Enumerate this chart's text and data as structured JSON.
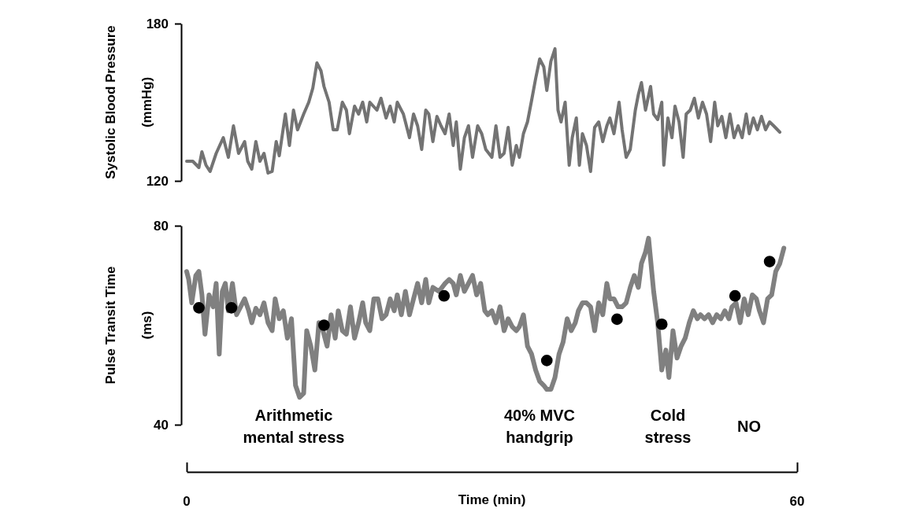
{
  "chart_data": [
    {
      "type": "line",
      "ylabel": "Systolic Blood Pressure\n(mmHg)",
      "xlim": [
        0,
        60
      ],
      "ylim": [
        120,
        180
      ],
      "yticks": [
        120,
        180
      ],
      "tick_labels": "y",
      "grid": false,
      "series": [
        {
          "color": "#737373",
          "x": [
            0,
            0.6,
            1.2,
            1.5,
            1.9,
            2.3,
            2.9,
            3.6,
            4.1,
            4.6,
            5.1,
            5.7,
            6.0,
            6.4,
            6.8,
            7.2,
            7.6,
            8.0,
            8.4,
            8.8,
            9.1,
            9.7,
            10.1,
            10.5,
            10.9,
            11.5,
            12.0,
            12.4,
            12.8,
            13.2,
            13.5,
            14.0,
            14.4,
            14.8,
            15.3,
            15.7,
            16.0,
            16.5,
            16.9,
            17.3,
            17.7,
            18.0,
            18.7,
            19.1,
            19.6,
            20.0,
            20.4,
            20.7,
            21.3,
            21.9,
            22.3,
            22.7,
            23.1,
            23.5,
            23.8,
            24.2,
            24.6,
            25.0,
            25.4,
            25.8,
            26.2,
            26.5,
            26.9,
            27.3,
            27.7,
            28.1,
            28.6,
            29.0,
            29.4,
            30.0,
            30.4,
            30.8,
            31.2,
            31.6,
            32.0,
            32.4,
            32.7,
            33.1,
            33.5,
            33.9,
            34.3,
            34.7,
            35.1,
            35.4,
            35.8,
            36.2,
            36.5,
            36.8,
            37.2,
            37.6,
            37.9,
            38.3,
            38.6,
            38.9,
            39.3,
            39.7,
            40.1,
            40.5,
            40.9,
            41.3,
            41.6,
            42.0,
            42.5,
            42.8,
            43.2,
            43.6,
            44.1,
            44.4,
            44.7,
            45.1,
            45.6,
            45.9,
            46.3,
            46.7,
            46.9,
            47.3,
            47.7,
            48.0,
            48.4,
            48.8,
            49.1,
            49.5,
            49.9,
            50.3,
            50.7,
            51.1,
            51.5,
            51.9,
            52.2,
            52.6,
            53.0,
            53.4,
            53.8,
            54.2,
            54.6,
            55.0,
            55.3,
            55.7,
            56.1,
            56.5,
            56.9,
            57.3,
            57.7,
            58.3
          ],
          "values": [
            127.5,
            127.5,
            125.1,
            131.1,
            126,
            123.6,
            130.5,
            136.5,
            129,
            141,
            130.5,
            135,
            127.5,
            124.5,
            135,
            127.5,
            130.5,
            123,
            123.6,
            135,
            129.6,
            145.5,
            133.5,
            147,
            139.5,
            145.5,
            150,
            155.4,
            165,
            162,
            156,
            150,
            139.5,
            139.5,
            150,
            147,
            138,
            148.5,
            145.5,
            150,
            142.5,
            150,
            147,
            151.5,
            144,
            148.5,
            142.5,
            150,
            145.5,
            136.5,
            145.5,
            141,
            132,
            147,
            145.5,
            135,
            144.6,
            141,
            138,
            145.5,
            133.5,
            142.5,
            124.5,
            136.5,
            141,
            129,
            141,
            138,
            132,
            129,
            141,
            129,
            130.5,
            140.4,
            126,
            133.5,
            129,
            138,
            142.5,
            150.6,
            159,
            166.5,
            163.5,
            154.5,
            165.6,
            170.4,
            147,
            142.5,
            150,
            126,
            136.5,
            144,
            126,
            138,
            133.5,
            123.6,
            140.4,
            142.5,
            135,
            141,
            144,
            138,
            150,
            139.5,
            129,
            132,
            147,
            153,
            157.5,
            147,
            156,
            145.5,
            143.4,
            150,
            126,
            144,
            136.5,
            148.5,
            142.5,
            129,
            145.5,
            147,
            151.5,
            144,
            150,
            145.5,
            135,
            150,
            141,
            144.6,
            136.5,
            145.5,
            136.5,
            141,
            136.5,
            145.5,
            138,
            144,
            139.5,
            144.6,
            139.5,
            142.5,
            141,
            138.6
          ]
        }
      ]
    },
    {
      "type": "line",
      "ylabel": "Pulse Transit Time\n(ms)",
      "xlabel": "Time (min)",
      "xlim": [
        0,
        60
      ],
      "ylim": [
        40,
        80
      ],
      "yticks": [
        40,
        80
      ],
      "xticks": [
        0,
        60
      ],
      "grid": false,
      "annotations": [
        "Arithmetic\nmental stress",
        "40% MVC\nhandgrip",
        "Cold\nstress",
        "NO"
      ],
      "series": [
        {
          "color": "#808080",
          "x": [
            0,
            0.2,
            0.5,
            0.9,
            1.2,
            1.5,
            1.8,
            2.2,
            2.6,
            2.9,
            3.2,
            3.5,
            3.8,
            4.1,
            4.5,
            4.9,
            5.3,
            5.7,
            6.1,
            6.4,
            6.8,
            7.2,
            7.6,
            8.0,
            8.4,
            8.7,
            9.1,
            9.5,
            9.9,
            10.3,
            10.7,
            11.1,
            11.5,
            11.8,
            12.2,
            12.6,
            13.0,
            13.4,
            13.8,
            14.2,
            14.6,
            14.9,
            15.3,
            15.7,
            16.1,
            16.5,
            16.9,
            17.3,
            17.6,
            18.0,
            18.4,
            18.8,
            19.2,
            19.6,
            20.0,
            20.4,
            20.7,
            21.1,
            21.5,
            21.9,
            22.3,
            22.7,
            23.1,
            23.5,
            23.8,
            24.2,
            24.8,
            25.4,
            25.8,
            26.2,
            26.5,
            26.9,
            27.3,
            27.7,
            28.1,
            28.5,
            28.9,
            29.3,
            29.6,
            30.0,
            30.4,
            30.8,
            31.2,
            31.6,
            32.0,
            32.4,
            32.7,
            33.1,
            33.5,
            33.9,
            34.3,
            34.7,
            35.1,
            35.4,
            35.8,
            36.2,
            36.6,
            37.0,
            37.4,
            37.8,
            38.2,
            38.5,
            38.9,
            39.3,
            39.7,
            40.1,
            40.5,
            40.9,
            41.3,
            41.6,
            42.0,
            42.4,
            42.8,
            43.2,
            43.6,
            44.0,
            44.4,
            44.7,
            45.1,
            45.4,
            45.9,
            46.3,
            46.7,
            47.1,
            47.4,
            47.8,
            48.2,
            48.6,
            49.0,
            49.4,
            49.8,
            50.2,
            50.5,
            50.9,
            51.3,
            51.7,
            52.1,
            52.5,
            52.9,
            53.3,
            53.6,
            54.0,
            54.4,
            54.8,
            55.2,
            55.6,
            56.0,
            56.3,
            56.7,
            57.1,
            57.5,
            57.9,
            58.3,
            58.7
          ],
          "values": [
            70.8,
            69.2,
            64.5,
            70.0,
            70.8,
            66.1,
            58.2,
            66.1,
            63.7,
            68.4,
            54.2,
            66.8,
            68.4,
            62.9,
            68.4,
            62.1,
            63.7,
            65.3,
            62.9,
            60.5,
            63.4,
            62.1,
            64.5,
            60.5,
            58.9,
            65.3,
            61.3,
            62.9,
            57.4,
            61.3,
            47.9,
            45.5,
            46.3,
            58.9,
            55.8,
            51.0,
            60.5,
            58.9,
            55.8,
            62.1,
            57.4,
            62.9,
            58.9,
            58.2,
            63.7,
            57.4,
            60.5,
            64.5,
            60.5,
            58.9,
            65.3,
            65.3,
            61.3,
            62.1,
            65.3,
            62.9,
            66.1,
            62.1,
            66.8,
            62.1,
            65.3,
            68.4,
            64.5,
            69.2,
            64.5,
            67.6,
            66.8,
            68.4,
            69.2,
            68.4,
            66.1,
            70.0,
            66.8,
            68.4,
            70.0,
            66.1,
            68.4,
            62.9,
            62.1,
            62.9,
            60.5,
            63.7,
            58.9,
            61.3,
            59.7,
            58.9,
            59.7,
            62.1,
            55.8,
            54.2,
            51.0,
            48.7,
            47.9,
            47.1,
            47.1,
            49.5,
            54.2,
            56.6,
            61.3,
            58.9,
            60.5,
            62.9,
            64.5,
            64.5,
            63.7,
            58.9,
            64.5,
            62.1,
            68.4,
            65.3,
            65.3,
            63.7,
            63.7,
            64.5,
            67.6,
            70.0,
            67.6,
            72.4,
            74.7,
            77.5,
            66.8,
            60.5,
            51.0,
            55.0,
            49.5,
            58.9,
            53.4,
            55.8,
            57.4,
            60.5,
            62.9,
            61.3,
            62.1,
            61.3,
            62.1,
            60.5,
            62.1,
            61.3,
            62.9,
            61.3,
            63.7,
            64.5,
            60.5,
            65.3,
            62.1,
            66.1,
            65.3,
            62.9,
            60.5,
            65.3,
            66.1,
            70.8,
            72.4,
            75.5
          ]
        },
        {
          "type": "scatter",
          "marker": "circle",
          "color": "#000000",
          "x": [
            1.2,
            4.4,
            13.5,
            25.3,
            35.4,
            42.3,
            46.7,
            53.9,
            57.3
          ],
          "values": [
            63.5,
            63.5,
            60.0,
            65.9,
            52.9,
            61.2,
            60.2,
            65.9,
            72.8
          ]
        }
      ]
    }
  ]
}
